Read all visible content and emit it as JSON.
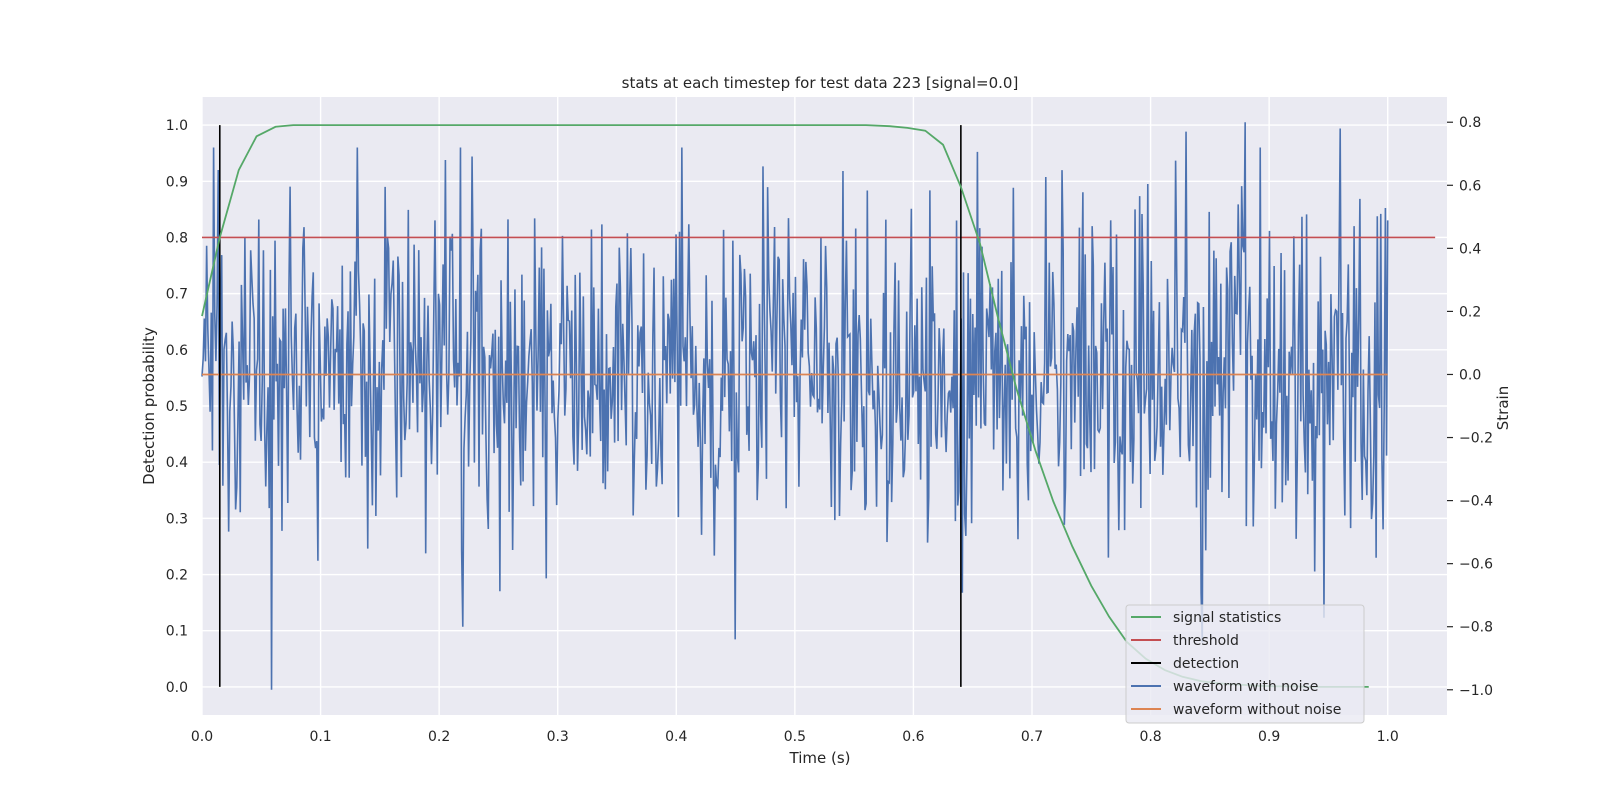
{
  "chart_data": {
    "type": "line",
    "title": "stats at each timestep for test data 223 [signal=0.0]",
    "xlabel": "Time (s)",
    "ylabel": "Detection probability",
    "ylabel_right": "Strain",
    "xlim": [
      0.0,
      1.05
    ],
    "ylim": [
      -0.05,
      1.05
    ],
    "ylim_right": [
      -1.08,
      0.88
    ],
    "x_ticks": [
      0.0,
      0.1,
      0.2,
      0.3,
      0.4,
      0.5,
      0.6,
      0.7,
      0.8,
      0.9,
      1.0
    ],
    "x_tick_labels": [
      "0.0",
      "0.1",
      "0.2",
      "0.3",
      "0.4",
      "0.5",
      "0.6",
      "0.7",
      "0.8",
      "0.9",
      "1.0"
    ],
    "y_ticks": [
      0.0,
      0.1,
      0.2,
      0.3,
      0.4,
      0.5,
      0.6,
      0.7,
      0.8,
      0.9,
      1.0
    ],
    "y_tick_labels": [
      "0.0",
      "0.1",
      "0.2",
      "0.3",
      "0.4",
      "0.5",
      "0.6",
      "0.7",
      "0.8",
      "0.9",
      "1.0"
    ],
    "y_right_ticks": [
      0.8,
      0.6,
      0.4,
      0.2,
      0.0,
      -0.2,
      -0.4,
      -0.6,
      -0.8,
      -1.0
    ],
    "y_right_tick_labels": [
      "0.8",
      "0.6",
      "0.4",
      "0.2",
      "0.0",
      "−0.2",
      "−0.4",
      "−0.6",
      "−0.8",
      "−1.0"
    ],
    "grid": true,
    "legend_position": "bottom-right",
    "background": "#eaeaf2",
    "series": [
      {
        "name": "signal statistics",
        "color": "#55a868",
        "axis": "left",
        "x": [
          0.0,
          0.015,
          0.031,
          0.046,
          0.062,
          0.077,
          0.1,
          0.2,
          0.3,
          0.4,
          0.5,
          0.56,
          0.58,
          0.595,
          0.61,
          0.625,
          0.64,
          0.656,
          0.671,
          0.687,
          0.703,
          0.718,
          0.734,
          0.75,
          0.765,
          0.78,
          0.796,
          0.812,
          0.827,
          0.843,
          0.859,
          0.875,
          0.89,
          0.906,
          0.921,
          0.937,
          0.953,
          0.968,
          0.984
        ],
        "y": [
          0.66,
          0.8,
          0.92,
          0.98,
          0.997,
          1.0,
          1.0,
          1.0,
          1.0,
          1.0,
          1.0,
          1.0,
          0.998,
          0.995,
          0.99,
          0.965,
          0.89,
          0.79,
          0.66,
          0.53,
          0.42,
          0.33,
          0.25,
          0.18,
          0.125,
          0.08,
          0.05,
          0.03,
          0.018,
          0.01,
          0.006,
          0.004,
          0.002,
          0.001,
          0.001,
          0.0,
          0.0,
          0.0,
          0.0
        ]
      },
      {
        "name": "threshold",
        "color": "#c44e52",
        "axis": "left",
        "x": [
          0.0,
          1.04
        ],
        "y": [
          0.8,
          0.8
        ]
      },
      {
        "name": "detection",
        "color": "#000000",
        "axis": "left",
        "events_x": [
          0.015,
          0.64
        ],
        "y_range": [
          0.0,
          1.0
        ]
      },
      {
        "name": "waveform with noise",
        "color": "#4c72b0",
        "axis": "right",
        "x_range": [
          0.0,
          1.0
        ],
        "n_points": 1024,
        "approx_range": [
          -1.0,
          0.8
        ],
        "noise_seed": 223,
        "spikes": [
          {
            "x": 0.059,
            "y": -1.0
          },
          {
            "x": 0.22,
            "y": -0.8
          },
          {
            "x": 0.45,
            "y": -0.84
          },
          {
            "x": 0.88,
            "y": 0.8
          },
          {
            "x": 0.205,
            "y": 0.68
          },
          {
            "x": 0.473,
            "y": 0.66
          },
          {
            "x": 0.96,
            "y": 0.78
          },
          {
            "x": 0.83,
            "y": 0.77
          }
        ]
      },
      {
        "name": "waveform without noise",
        "color": "#dd8452",
        "axis": "right",
        "x": [
          0.0,
          1.0
        ],
        "y": [
          0.0,
          0.0
        ]
      }
    ]
  }
}
